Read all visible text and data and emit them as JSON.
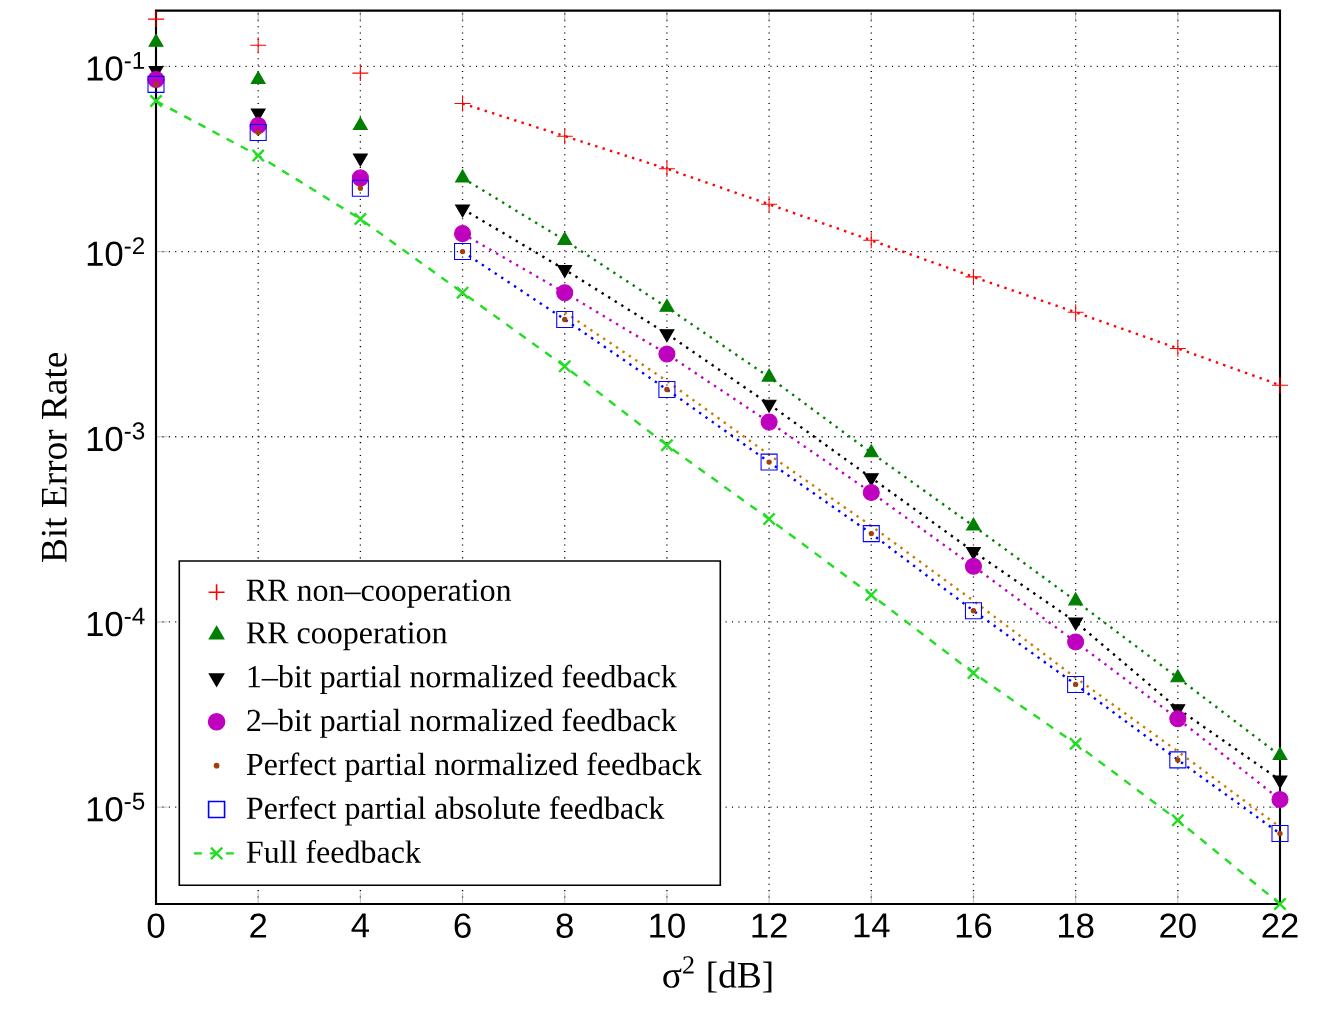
{
  "chart_data": {
    "type": "scatter",
    "xlabel": "σ$^{2}$ [dB]",
    "ylabel": "Bit Error Rate",
    "log": "y",
    "grid": true,
    "legend": "bottom left",
    "xlim": [
      0,
      22
    ],
    "xticks": [
      0,
      2,
      4,
      6,
      8,
      10,
      12,
      14,
      16,
      18,
      20,
      22
    ],
    "ylim": [
      3e-06,
      0.2
    ],
    "yticks": [
      {
        "value": 1e-05,
        "label": "10$^{-5}$"
      },
      {
        "value": 0.0001,
        "label": "10$^{-4}$"
      },
      {
        "value": 0.001,
        "label": "10$^{-3}$"
      },
      {
        "value": 0.01,
        "label": "10$^{-2}$"
      },
      {
        "value": 0.1,
        "label": "10$^{-1}$"
      }
    ],
    "x": [
      0,
      2,
      4,
      6,
      8,
      10,
      12,
      14,
      16,
      18,
      20,
      22
    ],
    "series": [
      {
        "name": "RR non–cooperation",
        "marker": "plus",
        "color": "#ff0000",
        "values": [
          0.18,
          0.13,
          0.092,
          0.063,
          0.042,
          0.028,
          0.018,
          0.0115,
          0.0073,
          0.0047,
          0.003,
          0.0019
        ]
      },
      {
        "name": "RR cooperation",
        "marker": "triangle",
        "color": "#007f00",
        "values": [
          0.135,
          0.085,
          0.048,
          0.025,
          0.0115,
          0.005,
          0.0021,
          0.00082,
          0.00033,
          0.00013,
          5e-05,
          1.9e-05
        ]
      },
      {
        "name": "1–bit partial normalized feedback",
        "marker": "triangle-down",
        "color": "#000000",
        "values": [
          0.095,
          0.056,
          0.032,
          0.017,
          0.008,
          0.0036,
          0.0015,
          0.0006,
          0.00024,
          0.0001,
          3.4e-05,
          1.4e-05
        ]
      },
      {
        "name": "2–bit partial normalized feedback",
        "marker": "circle",
        "color": "#bf00bf",
        "values": [
          0.085,
          0.048,
          0.025,
          0.0125,
          0.006,
          0.0028,
          0.0012,
          0.0005,
          0.0002,
          7.8e-05,
          3e-05,
          1.1e-05
        ]
      },
      {
        "name": "Perfect partial normalized feedback",
        "marker": "point",
        "color": "#a0400a",
        "values": [
          0.08,
          0.044,
          0.022,
          0.01,
          0.0043,
          0.0018,
          0.00073,
          0.0003,
          0.000115,
          4.6e-05,
          1.8e-05,
          7.2e-06
        ]
      },
      {
        "name": "Perfect partial absolute feedback",
        "marker": "square",
        "color": "#0000ff",
        "values": [
          0.08,
          0.044,
          0.022,
          0.01,
          0.0043,
          0.0018,
          0.00073,
          0.0003,
          0.000115,
          4.6e-05,
          1.8e-05,
          7.2e-06
        ]
      },
      {
        "name": "Full feedback",
        "type": "line",
        "marker": "cross",
        "line_style": "dashed",
        "color": "#22dd22",
        "values": [
          0.065,
          0.033,
          0.015,
          0.006,
          0.0024,
          0.0009,
          0.00036,
          0.00014,
          5.3e-05,
          2.2e-05,
          8.5e-06,
          3e-06
        ]
      },
      {
        "type": "line",
        "marker": "none",
        "line_style": "dotted",
        "color": "#ff0000",
        "x": [
          6,
          8,
          10,
          12,
          14,
          16,
          18,
          20,
          22
        ],
        "values": [
          0.063,
          0.042,
          0.028,
          0.018,
          0.0115,
          0.0073,
          0.0047,
          0.003,
          0.0019
        ]
      },
      {
        "type": "line",
        "marker": "none",
        "line_style": "dotted",
        "color": "#007f00",
        "x": [
          6,
          8,
          10,
          12,
          14,
          16,
          18,
          20,
          22
        ],
        "values": [
          0.025,
          0.0115,
          0.005,
          0.0021,
          0.00082,
          0.00033,
          0.00013,
          5e-05,
          1.9e-05
        ]
      },
      {
        "type": "line",
        "marker": "none",
        "line_style": "dotted",
        "color": "#000000",
        "x": [
          6,
          8,
          10,
          12,
          14,
          16,
          18,
          20,
          22
        ],
        "values": [
          0.017,
          0.008,
          0.0036,
          0.0015,
          0.0006,
          0.00024,
          0.0001,
          3.4e-05,
          1.4e-05
        ]
      },
      {
        "type": "line",
        "marker": "none",
        "line_style": "dotted",
        "color": "#bf00bf",
        "x": [
          6,
          8,
          10,
          12,
          14,
          16,
          18,
          20,
          22
        ],
        "values": [
          0.0125,
          0.006,
          0.0028,
          0.0012,
          0.0005,
          0.0002,
          7.8e-05,
          3e-05,
          1.1e-05
        ]
      },
      {
        "type": "line",
        "marker": "none",
        "line_style": "dotted",
        "color": "#cc7a00",
        "x": [
          8,
          10,
          12,
          14,
          16,
          18,
          20,
          22
        ],
        "values": [
          0.0047,
          0.002,
          0.0008,
          0.00033,
          0.00013,
          5e-05,
          2e-05,
          7.8e-06
        ]
      },
      {
        "type": "line",
        "marker": "none",
        "line_style": "dotted",
        "color": "#0000ff",
        "x": [
          6,
          8,
          10,
          12,
          14,
          16,
          18,
          20,
          22
        ],
        "values": [
          0.01,
          0.0043,
          0.0018,
          0.00073,
          0.0003,
          0.000115,
          4.6e-05,
          1.8e-05,
          7.2e-06
        ]
      }
    ]
  }
}
